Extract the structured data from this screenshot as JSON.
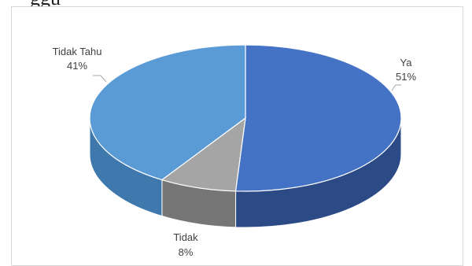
{
  "header": {
    "partial_text": "ggu"
  },
  "chart_data": {
    "type": "pie",
    "style": "3d",
    "categories": [
      "Ya",
      "Tidak",
      "Tidak Tahu"
    ],
    "values": [
      51,
      8,
      41
    ],
    "data_labels": [
      {
        "name": "Ya",
        "percent": "51%"
      },
      {
        "name": "Tidak",
        "percent": "8%"
      },
      {
        "name": "Tidak Tahu",
        "percent": "41%"
      }
    ],
    "colors": {
      "Ya": {
        "top": "#4472c4",
        "side": "#2b4a86"
      },
      "Tidak": {
        "top": "#a5a5a5",
        "side": "#767676"
      },
      "Tidak Tahu": {
        "top": "#5b9bd5",
        "side": "#3f78ad"
      }
    },
    "legend": "none",
    "title": ""
  }
}
